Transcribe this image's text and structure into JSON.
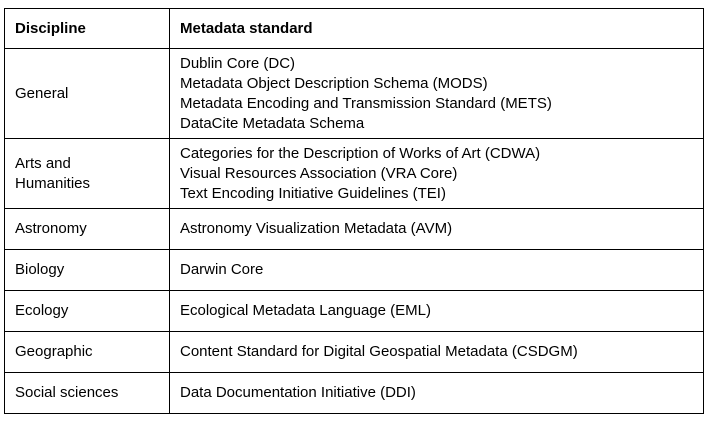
{
  "table": {
    "headers": {
      "discipline": "Discipline",
      "standard": "Metadata standard"
    },
    "rows": [
      {
        "discipline": [
          "General"
        ],
        "standards": [
          "Dublin Core (DC)",
          "Metadata Object Description Schema (MODS)",
          "Metadata Encoding and Transmission Standard (METS)",
          "DataCite Metadata Schema"
        ]
      },
      {
        "discipline": [
          "Arts and",
          "Humanities"
        ],
        "standards": [
          "Categories for the Description of Works of Art (CDWA)",
          "Visual Resources Association (VRA Core)",
          "Text Encoding Initiative Guidelines (TEI)"
        ]
      },
      {
        "discipline": [
          "Astronomy"
        ],
        "standards": [
          "Astronomy Visualization Metadata (AVM)"
        ]
      },
      {
        "discipline": [
          "Biology"
        ],
        "standards": [
          "Darwin Core"
        ]
      },
      {
        "discipline": [
          "Ecology"
        ],
        "standards": [
          "Ecological Metadata Language (EML)"
        ]
      },
      {
        "discipline": [
          "Geographic"
        ],
        "standards": [
          "Content Standard for Digital Geospatial Metadata (CSDGM)"
        ]
      },
      {
        "discipline": [
          "Social sciences"
        ],
        "standards": [
          "Data Documentation Initiative (DDI)"
        ]
      }
    ]
  }
}
